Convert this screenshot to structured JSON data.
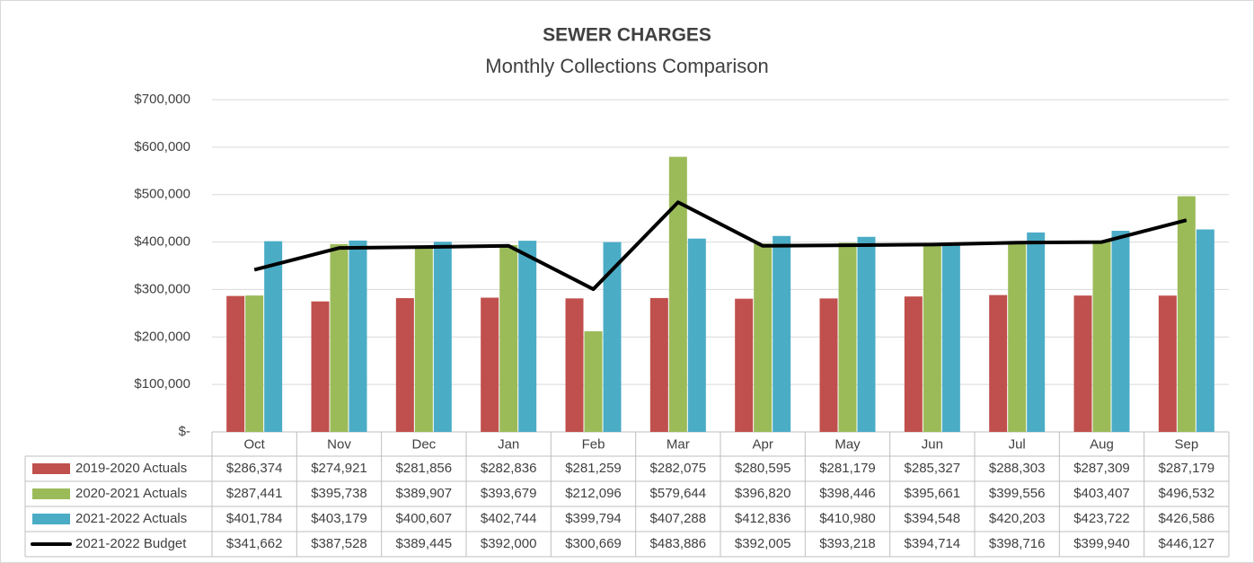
{
  "chart_data": {
    "type": "bar",
    "title": "SEWER CHARGES",
    "subtitle": "Monthly Collections Comparison",
    "categories": [
      "Oct",
      "Nov",
      "Dec",
      "Jan",
      "Feb",
      "Mar",
      "Apr",
      "May",
      "Jun",
      "Jul",
      "Aug",
      "Sep"
    ],
    "ylim": [
      0,
      700000
    ],
    "yticks": [
      {
        "value": 0,
        "label": "$-"
      },
      {
        "value": 100000,
        "label": "$100,000"
      },
      {
        "value": 200000,
        "label": "$200,000"
      },
      {
        "value": 300000,
        "label": "$300,000"
      },
      {
        "value": 400000,
        "label": "$400,000"
      },
      {
        "value": 500000,
        "label": "$500,000"
      },
      {
        "value": 600000,
        "label": "$600,000"
      },
      {
        "value": 700000,
        "label": "$700,000"
      }
    ],
    "grid": true,
    "series": [
      {
        "name": "2019-2020 Actuals",
        "type": "bar",
        "color": "#c0504d",
        "values": [
          286374,
          274921,
          281856,
          282836,
          281259,
          282075,
          280595,
          281179,
          285327,
          288303,
          287309,
          287179
        ],
        "value_labels": [
          "$286,374",
          "$274,921",
          "$281,856",
          "$282,836",
          "$281,259",
          "$282,075",
          "$280,595",
          "$281,179",
          "$285,327",
          "$288,303",
          "$287,309",
          "$287,179"
        ]
      },
      {
        "name": "2020-2021 Actuals",
        "type": "bar",
        "color": "#9bbb59",
        "values": [
          287441,
          395738,
          389907,
          393679,
          212096,
          579644,
          396820,
          398446,
          395661,
          399556,
          403407,
          496532
        ],
        "value_labels": [
          "$287,441",
          "$395,738",
          "$389,907",
          "$393,679",
          "$212,096",
          "$579,644",
          "$396,820",
          "$398,446",
          "$395,661",
          "$399,556",
          "$403,407",
          "$496,532"
        ]
      },
      {
        "name": "2021-2022 Actuals",
        "type": "bar",
        "color": "#4bacc6",
        "values": [
          401784,
          403179,
          400607,
          402744,
          399794,
          407288,
          412836,
          410980,
          394548,
          420203,
          423722,
          426586
        ],
        "value_labels": [
          "$401,784",
          "$403,179",
          "$400,607",
          "$402,744",
          "$399,794",
          "$407,288",
          "$412,836",
          "$410,980",
          "$394,548",
          "$420,203",
          "$423,722",
          "$426,586"
        ]
      },
      {
        "name": "2021-2022 Budget",
        "type": "line",
        "color": "#000000",
        "values": [
          341662,
          387528,
          389445,
          392000,
          300669,
          483886,
          392005,
          393218,
          394714,
          398716,
          399940,
          446127
        ],
        "value_labels": [
          "$341,662",
          "$387,528",
          "$389,445",
          "$392,000",
          "$300,669",
          "$483,886",
          "$392,005",
          "$393,218",
          "$394,714",
          "$398,716",
          "$399,940",
          "$446,127"
        ]
      }
    ]
  }
}
